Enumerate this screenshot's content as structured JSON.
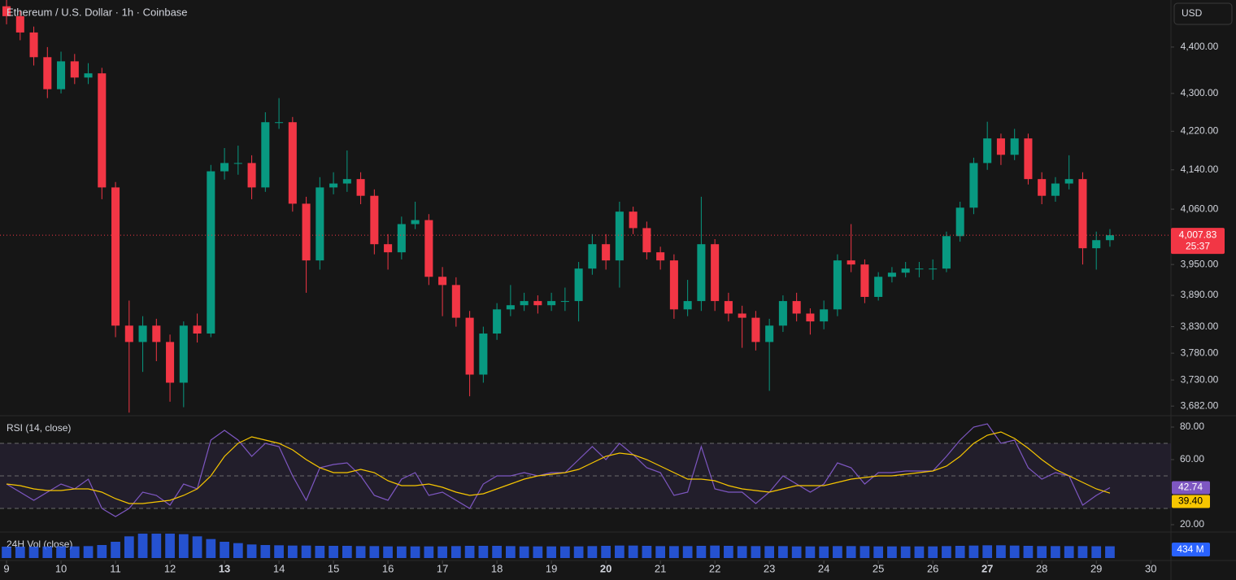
{
  "chart_data": {
    "type": "candlestick",
    "title": "Ethereum / U.S. Dollar · 1h · Coinbase",
    "currency": "USD",
    "x": [
      9,
      9.25,
      9.5,
      9.75,
      10,
      10.25,
      10.5,
      10.75,
      11,
      11.25,
      11.5,
      11.75,
      12,
      12.25,
      12.5,
      12.75,
      13,
      13.25,
      13.5,
      13.75,
      14,
      14.25,
      14.5,
      14.75,
      15,
      15.25,
      15.5,
      15.75,
      16,
      16.25,
      16.5,
      16.75,
      17,
      17.25,
      17.5,
      17.75,
      18,
      18.25,
      18.5,
      18.75,
      19,
      19.25,
      19.5,
      19.75,
      20,
      20.25,
      20.5,
      20.75,
      21,
      21.25,
      21.5,
      21.75,
      22,
      22.25,
      22.5,
      22.75,
      23,
      23.25,
      23.5,
      23.75,
      24,
      24.25,
      24.5,
      24.75,
      25,
      25.25,
      25.5,
      25.75,
      26,
      26.25,
      26.5,
      26.75,
      27,
      27.25,
      27.5,
      27.75,
      28,
      28.25,
      28.5,
      28.75,
      29,
      29.25
    ],
    "open": [
      4490,
      4468,
      4432,
      4378,
      4309,
      4369,
      4334,
      4343,
      4104,
      3832,
      3801,
      3832,
      3801,
      3725,
      3832,
      3817,
      4137,
      4154,
      4154,
      4104,
      4239,
      4239,
      4071,
      3958,
      4104,
      4112,
      4121,
      4087,
      3990,
      3974,
      4030,
      4038,
      3926,
      3910,
      3847,
      3740,
      3817,
      3863,
      3871,
      3879,
      3871,
      3879,
      3879,
      3942,
      3990,
      3958,
      4055,
      4022,
      3974,
      3958,
      3863,
      3879,
      3990,
      3879,
      3855,
      3847,
      3801,
      3832,
      3879,
      3855,
      3840,
      3863,
      3958,
      3950,
      3887,
      3926,
      3934,
      3942,
      3942,
      3942,
      4006,
      4063,
      4154,
      4205,
      4171,
      4205,
      4121,
      4087,
      4112,
      4121,
      3982,
      3998
    ],
    "high": [
      4504,
      4480,
      4445,
      4400,
      4390,
      4385,
      4365,
      4355,
      4115,
      3880,
      3850,
      3845,
      3815,
      3840,
      3855,
      4150,
      4185,
      4190,
      4170,
      4260,
      4290,
      4250,
      4085,
      4125,
      4135,
      4180,
      4135,
      4100,
      4010,
      4045,
      4075,
      4050,
      3945,
      3925,
      3860,
      3830,
      3875,
      3910,
      3895,
      3890,
      3895,
      3905,
      3955,
      4010,
      4010,
      4075,
      4065,
      4035,
      3985,
      3970,
      3920,
      4085,
      4000,
      3895,
      3870,
      3860,
      3845,
      3890,
      3895,
      3865,
      3880,
      3970,
      4030,
      3960,
      3935,
      3945,
      3955,
      3955,
      3960,
      4015,
      4075,
      4165,
      4240,
      4215,
      4225,
      4215,
      4135,
      4125,
      4170,
      4135,
      4015,
      4020
    ],
    "low": [
      4450,
      4415,
      4360,
      4290,
      4300,
      4320,
      4320,
      4080,
      3810,
      3670,
      3745,
      3765,
      3690,
      3680,
      3800,
      3810,
      4120,
      4130,
      4080,
      4095,
      4225,
      4055,
      3895,
      3940,
      4090,
      4095,
      4070,
      3970,
      3940,
      3960,
      4020,
      3910,
      3850,
      3830,
      3700,
      3725,
      3805,
      3850,
      3860,
      3855,
      3860,
      3860,
      3840,
      3930,
      3940,
      3905,
      4010,
      3960,
      3940,
      3845,
      3850,
      3860,
      3860,
      3840,
      3790,
      3785,
      3710,
      3820,
      3840,
      3815,
      3825,
      3850,
      3935,
      3875,
      3880,
      3915,
      3925,
      3925,
      3920,
      3935,
      3995,
      4050,
      4140,
      4150,
      4160,
      4110,
      4070,
      4075,
      4100,
      3950,
      3940,
      3985
    ],
    "close": [
      4468,
      4432,
      4378,
      4309,
      4369,
      4334,
      4343,
      4104,
      3832,
      3801,
      3832,
      3801,
      3725,
      3832,
      3817,
      4137,
      4154,
      4154,
      4104,
      4239,
      4239,
      4071,
      3958,
      4104,
      4112,
      4121,
      4087,
      3990,
      3974,
      4030,
      4038,
      3926,
      3910,
      3847,
      3740,
      3817,
      3863,
      3871,
      3879,
      3871,
      3879,
      3879,
      3942,
      3990,
      3958,
      4055,
      4022,
      3974,
      3958,
      3863,
      3879,
      3990,
      3879,
      3855,
      3847,
      3801,
      3832,
      3879,
      3855,
      3840,
      3863,
      3958,
      3950,
      3887,
      3926,
      3934,
      3942,
      3942,
      3942,
      4006,
      4063,
      4154,
      4205,
      4171,
      4205,
      4121,
      4087,
      4112,
      4121,
      3982,
      3998,
      4007.83
    ],
    "up_color": "#089981",
    "down_color": "#f23645",
    "log_scale": true,
    "ylim": [
      3666,
      4504
    ],
    "yticks": [
      {
        "value": 3682,
        "label": "3,682.00"
      },
      {
        "value": 3730,
        "label": "3,730.00"
      },
      {
        "value": 3780,
        "label": "3,780.00"
      },
      {
        "value": 3830,
        "label": "3,830.00"
      },
      {
        "value": 3890,
        "label": "3,890.00"
      },
      {
        "value": 3950,
        "label": "3,950.00"
      },
      {
        "value": 4060,
        "label": "4,060.00"
      },
      {
        "value": 4140,
        "label": "4,140.00"
      },
      {
        "value": 4220,
        "label": "4,220.00"
      },
      {
        "value": 4300,
        "label": "4,300.00"
      },
      {
        "value": 4400,
        "label": "4,400.00"
      }
    ],
    "xlim": [
      8.88,
      30.37
    ],
    "xticks": [
      9,
      10,
      11,
      12,
      13,
      14,
      15,
      16,
      17,
      18,
      19,
      20,
      21,
      22,
      23,
      24,
      25,
      26,
      27,
      28,
      29,
      30
    ],
    "bold_xticks": [
      13,
      20,
      27
    ],
    "last_price": {
      "value": 4007.83,
      "label": "4,007.83"
    },
    "countdown": "25:37",
    "rsi": {
      "name": "RSI (14, close)",
      "color": "#7e57c2",
      "ma_color": "#f7c600",
      "values": [
        45,
        40,
        35,
        40,
        45,
        42,
        48,
        30,
        25,
        30,
        40,
        38,
        32,
        45,
        42,
        72,
        78,
        72,
        62,
        70,
        68,
        50,
        35,
        55,
        57,
        58,
        50,
        38,
        35,
        48,
        52,
        38,
        40,
        35,
        30,
        45,
        50,
        50,
        52,
        50,
        52,
        52,
        60,
        68,
        60,
        70,
        63,
        55,
        52,
        38,
        40,
        68,
        42,
        40,
        40,
        33,
        40,
        50,
        45,
        40,
        45,
        58,
        55,
        45,
        52,
        52,
        53,
        53,
        53,
        62,
        72,
        80,
        82,
        70,
        72,
        55,
        48,
        52,
        50,
        32,
        38,
        42.74
      ],
      "ma_values": [
        45,
        44,
        42,
        41,
        41,
        42,
        42,
        40,
        36,
        33,
        33,
        34,
        35,
        38,
        42,
        50,
        62,
        70,
        74,
        72,
        70,
        66,
        60,
        55,
        52,
        52,
        54,
        52,
        47,
        44,
        44,
        45,
        43,
        40,
        38,
        39,
        42,
        45,
        48,
        50,
        51,
        52,
        54,
        58,
        62,
        64,
        63,
        60,
        56,
        52,
        48,
        48,
        47,
        44,
        42,
        41,
        40,
        42,
        44,
        44,
        44,
        46,
        48,
        49,
        50,
        50,
        51,
        52,
        53,
        56,
        62,
        70,
        75,
        77,
        73,
        67,
        60,
        54,
        50,
        46,
        42,
        39.4
      ],
      "ylim": [
        16.5,
        86.5
      ],
      "yticks": [
        {
          "value": 20,
          "label": "20.00"
        },
        {
          "value": 60,
          "label": "60.00"
        },
        {
          "value": 80,
          "label": "80.00"
        }
      ],
      "bands": [
        30,
        50,
        70
      ],
      "last_label": "42.74",
      "ma_last_label": "39.40"
    },
    "volume": {
      "name": "24H Vol (close)",
      "color": "#2962ff",
      "values": [
        420,
        420,
        420,
        425,
        430,
        430,
        440,
        480,
        600,
        800,
        900,
        900,
        900,
        880,
        800,
        700,
        600,
        550,
        500,
        480,
        470,
        460,
        460,
        450,
        450,
        450,
        440,
        440,
        430,
        430,
        430,
        430,
        430,
        440,
        450,
        450,
        450,
        440,
        430,
        430,
        430,
        430,
        430,
        440,
        450,
        460,
        460,
        450,
        440,
        440,
        440,
        450,
        460,
        450,
        440,
        440,
        440,
        440,
        430,
        430,
        430,
        440,
        440,
        440,
        430,
        430,
        430,
        430,
        430,
        440,
        450,
        460,
        470,
        470,
        460,
        450,
        440,
        440,
        440,
        440,
        435,
        434
      ],
      "last": {
        "value": 434,
        "label": "434 M"
      }
    }
  }
}
